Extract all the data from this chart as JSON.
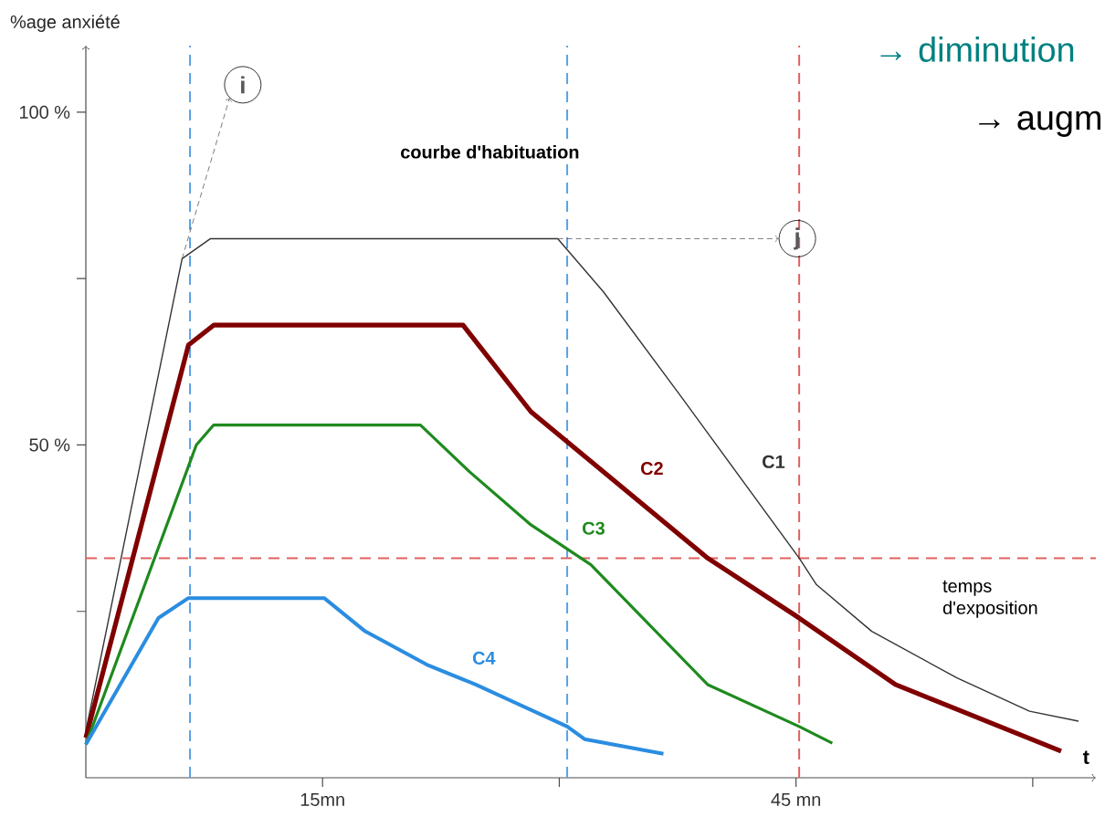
{
  "chart_data": {
    "type": "line",
    "title": "courbe d'habituation",
    "xlabel": "t",
    "ylabel": "%age anxiété",
    "xlim": [
      0,
      64
    ],
    "ylim": [
      0,
      110
    ],
    "xticks": [
      {
        "value": 15,
        "label": "15mn"
      },
      {
        "value": 30,
        "label": null
      },
      {
        "value": 45,
        "label": "45 mn"
      },
      {
        "value": 60,
        "label": null
      }
    ],
    "yticks": [
      {
        "value": 25,
        "label": null
      },
      {
        "value": 50,
        "label": "50 %"
      },
      {
        "value": 75,
        "label": null
      },
      {
        "value": 100,
        "label": "100 %"
      }
    ],
    "grid": false,
    "series": [
      {
        "name": "C1",
        "color": "#333333",
        "x": [
          0,
          6.1,
          7.9,
          29.9,
          32.8,
          37.8,
          45.2,
          46.3,
          49.8,
          55.2,
          59.8,
          62.9
        ],
        "values": [
          7,
          78,
          81,
          81,
          73,
          57,
          33,
          29,
          22,
          15,
          10,
          8.5
        ]
      },
      {
        "name": "C2",
        "color": "#800000",
        "x": [
          0,
          6.5,
          8.1,
          23.9,
          28.2,
          39.4,
          45.2,
          51.3,
          61.8
        ],
        "values": [
          6,
          65,
          68,
          68,
          55,
          33,
          24,
          14,
          4
        ]
      },
      {
        "name": "C3",
        "color": "#1e8a1e",
        "x": [
          0,
          7,
          8.1,
          21.2,
          24.3,
          28.2,
          32,
          39.4,
          45.2,
          47.3
        ],
        "values": [
          5,
          50,
          53,
          53,
          46,
          38,
          32,
          14,
          7.7,
          5.2
        ]
      },
      {
        "name": "C4",
        "color": "#2b8de0",
        "x": [
          0,
          4.6,
          6.5,
          15.1,
          17.7,
          21.6,
          24.7,
          30.5,
          31.6,
          36.6
        ],
        "values": [
          5,
          24,
          27,
          27,
          22,
          17,
          14,
          7.7,
          5.8,
          3.6
        ]
      }
    ],
    "ref_lines": [
      {
        "axis": "x",
        "value": 6.6,
        "color": "#5aa0e6",
        "line_style": "dashed"
      },
      {
        "axis": "x",
        "value": 30.5,
        "color": "#5aa0e6",
        "line_style": "dashed"
      },
      {
        "axis": "y",
        "value": 33,
        "color": "#e06060",
        "line_style": "dashed"
      },
      {
        "axis": "x",
        "value": 45.2,
        "color": "#e06060",
        "line_style": "dashed"
      }
    ],
    "annotations": [
      {
        "text": "i",
        "x": 6.1,
        "y": 78
      },
      {
        "text": "j",
        "x": 29.9,
        "y": 81
      },
      "temps d'exposition",
      "→ diminution",
      "→ augm"
    ]
  }
}
